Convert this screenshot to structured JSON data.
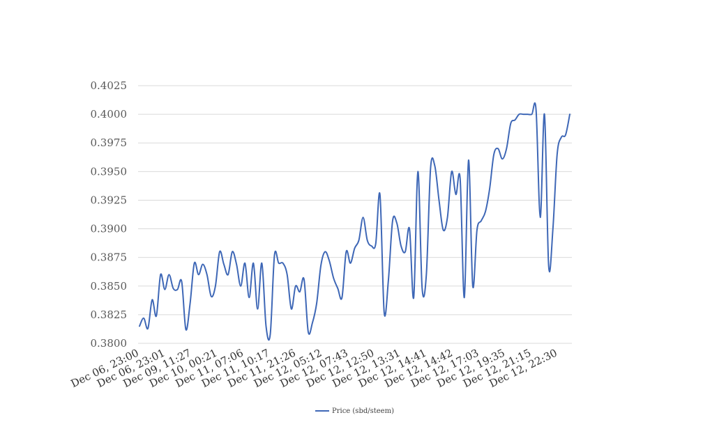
{
  "chart_data": {
    "type": "line",
    "title": "",
    "xlabel": "",
    "ylabel": "",
    "ylim": [
      0.38,
      0.4025
    ],
    "yticks": [
      "0.3800",
      "0.3825",
      "0.3850",
      "0.3875",
      "0.3900",
      "0.3925",
      "0.3950",
      "0.3975",
      "0.4000",
      "0.4025"
    ],
    "xtick_labels": [
      "Dec 06, 23:00",
      "Dec 06, 23:01",
      "Dec 09, 11:27",
      "Dec 10, 00:21",
      "Dec 11, 07:06",
      "Dec 11, 10:17",
      "Dec 11, 21:26",
      "Dec 12, 05:12",
      "Dec 12, 07:43",
      "Dec 12, 12:50",
      "Dec 12, 13:31",
      "Dec 12, 14:41",
      "Dec 12, 14:42",
      "Dec 12, 17:03",
      "Dec 12, 19:35",
      "Dec 12, 21:15",
      "Dec 12, 22:30"
    ],
    "grid": true,
    "legend_position": "bottom",
    "color": "#3e67b6",
    "series": [
      {
        "name": "Price (sbd/steem)",
        "values": [
          0.3815,
          0.3822,
          0.3813,
          0.3838,
          0.3824,
          0.386,
          0.3847,
          0.386,
          0.3848,
          0.3847,
          0.3854,
          0.3812,
          0.3835,
          0.387,
          0.386,
          0.3869,
          0.386,
          0.3841,
          0.385,
          0.388,
          0.3869,
          0.386,
          0.388,
          0.3869,
          0.385,
          0.387,
          0.384,
          0.387,
          0.383,
          0.387,
          0.3815,
          0.3808,
          0.3877,
          0.387,
          0.387,
          0.386,
          0.383,
          0.385,
          0.3845,
          0.3856,
          0.381,
          0.3818,
          0.3835,
          0.3868,
          0.388,
          0.3872,
          0.3857,
          0.3848,
          0.384,
          0.388,
          0.387,
          0.3883,
          0.389,
          0.391,
          0.389,
          0.3885,
          0.3887,
          0.393,
          0.3827,
          0.3855,
          0.3907,
          0.3905,
          0.3885,
          0.388,
          0.39,
          0.384,
          0.395,
          0.3848,
          0.386,
          0.3953,
          0.3955,
          0.3925,
          0.3899,
          0.391,
          0.395,
          0.393,
          0.3944,
          0.384,
          0.396,
          0.385,
          0.3899,
          0.3907,
          0.3915,
          0.3935,
          0.3965,
          0.397,
          0.3961,
          0.397,
          0.3992,
          0.3995,
          0.4,
          0.4,
          0.4,
          0.4,
          0.4004,
          0.391,
          0.4,
          0.3867,
          0.39,
          0.3965,
          0.398,
          0.3982,
          0.4
        ]
      }
    ]
  }
}
